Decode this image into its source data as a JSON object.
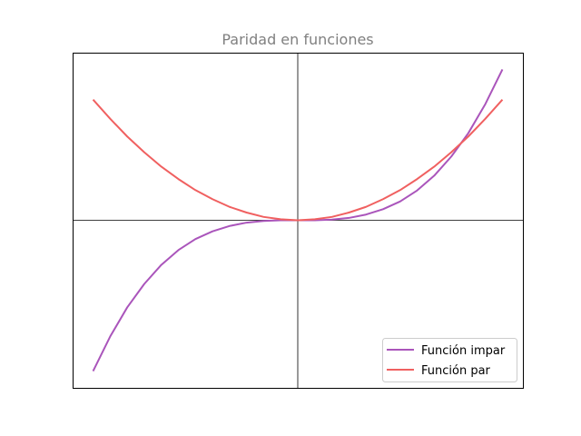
{
  "chart_data": {
    "type": "line",
    "title": "Paridad en funciones",
    "xlabel": "",
    "ylabel": "",
    "xlim": [
      -3.3,
      3.3
    ],
    "ylim": [
      -5.0,
      5.0
    ],
    "x_ticks_visible": false,
    "y_ticks_visible": false,
    "grid": false,
    "axes_cross_at_origin": true,
    "legend_position": "lower-right",
    "series": [
      {
        "name": "Función impar",
        "color": "#aa55bb",
        "x": [
          -3.0,
          -2.75,
          -2.5,
          -2.25,
          -2.0,
          -1.75,
          -1.5,
          -1.25,
          -1.0,
          -0.75,
          -0.5,
          -0.25,
          0.0,
          0.25,
          0.5,
          0.75,
          1.0,
          1.25,
          1.5,
          1.75,
          2.0,
          2.25,
          2.5,
          2.75,
          3.0
        ],
        "y": [
          -4.5,
          -3.47,
          -2.6,
          -1.9,
          -1.33,
          -0.89,
          -0.56,
          -0.33,
          -0.17,
          -0.07,
          -0.02,
          0.0,
          0.0,
          0.0,
          0.02,
          0.07,
          0.17,
          0.33,
          0.56,
          0.89,
          1.33,
          1.9,
          2.6,
          3.47,
          4.5
        ]
      },
      {
        "name": "Función par",
        "color": "#f06060",
        "x": [
          -3.0,
          -2.75,
          -2.5,
          -2.25,
          -2.0,
          -1.75,
          -1.5,
          -1.25,
          -1.0,
          -0.75,
          -0.5,
          -0.25,
          0.0,
          0.25,
          0.5,
          0.75,
          1.0,
          1.25,
          1.5,
          1.75,
          2.0,
          2.25,
          2.5,
          2.75,
          3.0
        ],
        "y": [
          3.6,
          3.03,
          2.5,
          2.03,
          1.6,
          1.23,
          0.9,
          0.63,
          0.4,
          0.23,
          0.1,
          0.03,
          0.0,
          0.03,
          0.1,
          0.23,
          0.4,
          0.63,
          0.9,
          1.23,
          1.6,
          2.03,
          2.5,
          3.03,
          3.6
        ]
      }
    ]
  }
}
